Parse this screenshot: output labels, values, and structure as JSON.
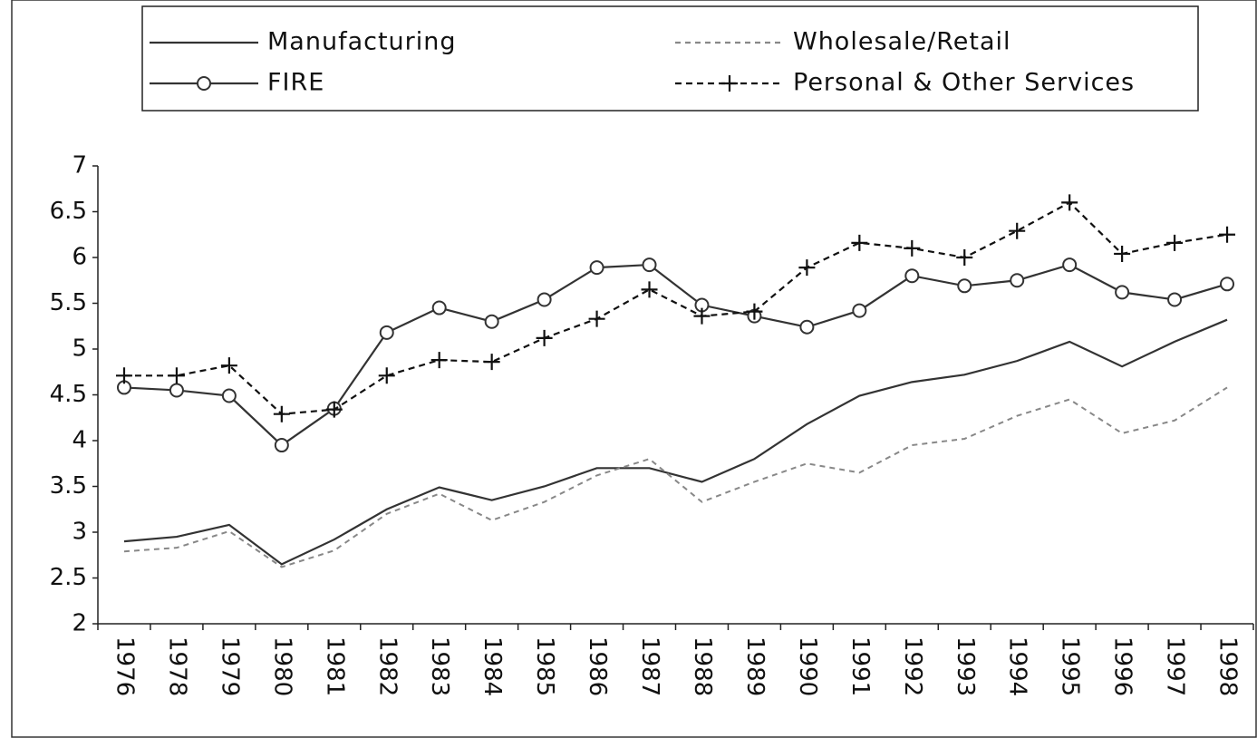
{
  "chart_data": {
    "type": "line",
    "categories": [
      "1976",
      "1978",
      "1979",
      "1980",
      "1981",
      "1982",
      "1983",
      "1984",
      "1985",
      "1986",
      "1987",
      "1988",
      "1989",
      "1990",
      "1991",
      "1992",
      "1993",
      "1994",
      "1995",
      "1996",
      "1997",
      "1998"
    ],
    "series": [
      {
        "name": "Manufacturing",
        "color": "#333333",
        "dash": "solid",
        "marker": "none",
        "values": [
          2.9,
          2.95,
          3.08,
          2.65,
          2.92,
          3.25,
          3.49,
          3.35,
          3.5,
          3.7,
          3.7,
          3.55,
          3.8,
          4.18,
          4.49,
          4.64,
          4.72,
          4.87,
          5.08,
          4.81,
          5.08,
          5.32
        ]
      },
      {
        "name": "Wholesale/Retail",
        "color": "#888888",
        "dash": "dashed",
        "marker": "none",
        "values": [
          2.79,
          2.83,
          3.01,
          2.62,
          2.8,
          3.2,
          3.42,
          3.13,
          3.33,
          3.62,
          3.8,
          3.33,
          3.55,
          3.75,
          3.65,
          3.95,
          4.02,
          4.27,
          4.45,
          4.08,
          4.22,
          4.58
        ]
      },
      {
        "name": "FIRE",
        "color": "#333333",
        "dash": "solid",
        "marker": "circle",
        "values": [
          4.58,
          4.55,
          4.49,
          3.95,
          4.35,
          5.18,
          5.45,
          5.3,
          5.54,
          5.89,
          5.92,
          5.48,
          5.36,
          5.24,
          5.42,
          5.8,
          5.69,
          5.75,
          5.92,
          5.62,
          5.54,
          5.71
        ]
      },
      {
        "name": "Personal & Other Services",
        "color": "#111111",
        "dash": "dashed",
        "marker": "plus",
        "values": [
          4.71,
          4.71,
          4.82,
          4.29,
          4.34,
          4.71,
          4.88,
          4.86,
          5.12,
          5.33,
          5.65,
          5.36,
          5.41,
          5.89,
          6.16,
          6.1,
          6.0,
          6.29,
          6.6,
          6.04,
          6.16,
          6.25
        ]
      }
    ],
    "ylim": [
      2,
      7
    ],
    "yticks": [
      2,
      2.5,
      3,
      3.5,
      4,
      4.5,
      5,
      5.5,
      6,
      6.5,
      7
    ],
    "grid": false,
    "legend": "top"
  }
}
